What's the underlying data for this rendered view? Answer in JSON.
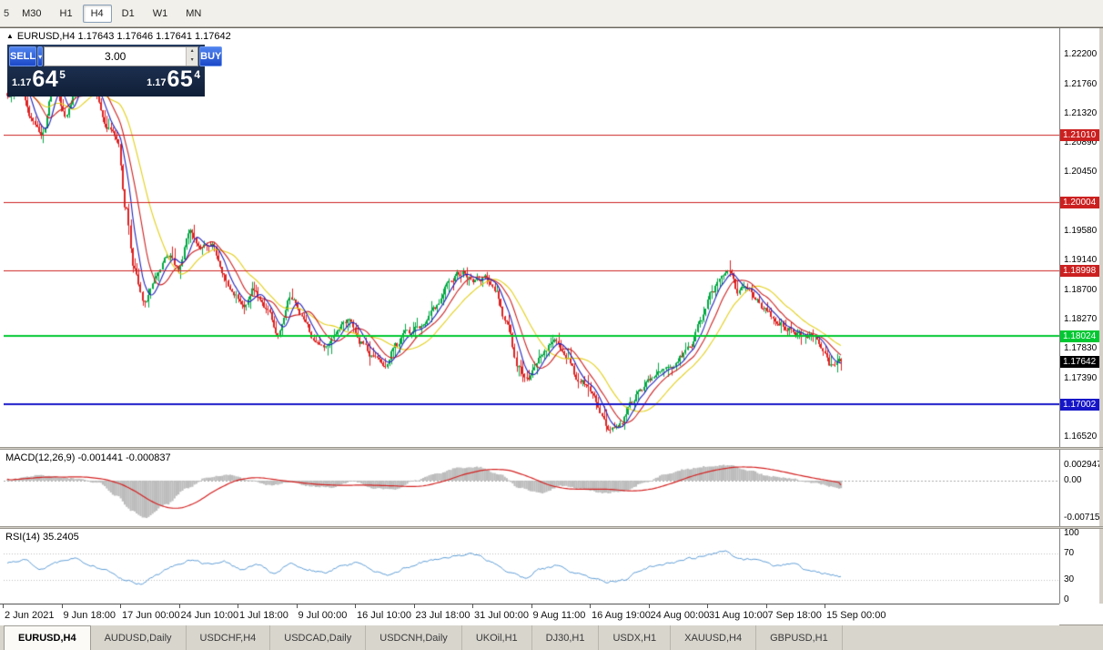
{
  "toolbar": {
    "partial_label": "5",
    "timeframes": [
      "M30",
      "H1",
      "H4",
      "D1",
      "W1",
      "MN"
    ],
    "active_timeframe": "H4"
  },
  "chart_header": {
    "toggle_arrow": "▲",
    "title": "EURUSD,H4 1.17643 1.17646 1.17641 1.17642"
  },
  "trade_panel": {
    "sell_label": "SELL",
    "buy_label": "BUY",
    "dropdown_arrow": "▾",
    "volume": "3.00",
    "spin_up": "▴",
    "spin_down": "▾",
    "sell_price": {
      "prefix": "1.17",
      "big": "64",
      "sup": "5"
    },
    "buy_price": {
      "prefix": "1.17",
      "big": "65",
      "sup": "4"
    }
  },
  "price_axis_labels": [
    "1.22200",
    "1.21760",
    "1.21320",
    "1.20890",
    "1.20450",
    "1.20010",
    "1.19580",
    "1.19140",
    "1.18700",
    "1.18270",
    "1.17830",
    "1.17390",
    "1.16960",
    "1.16520"
  ],
  "current_price_badge": "1.17642",
  "macd_panel": {
    "label": "MACD(12,26,9) -0.001441 -0.000837",
    "axis_labels": [
      "0.002947",
      "0.00",
      "-0.007151"
    ]
  },
  "rsi_panel": {
    "label": "RSI(14) 35.2405",
    "axis_labels": [
      "100",
      "70",
      "30",
      "0"
    ]
  },
  "time_axis_labels": [
    "2 Jun 2021",
    "9 Jun 18:00",
    "17 Jun 00:00",
    "24 Jun 10:00",
    "1 Jul 18:00",
    "9 Jul 00:00",
    "16 Jul 10:00",
    "23 Jul 18:00",
    "31 Jul 00:00",
    "9 Aug 11:00",
    "16 Aug 19:00",
    "24 Aug 00:00",
    "31 Aug 10:00",
    "7 Sep 18:00",
    "15 Sep 00:00"
  ],
  "tabs": [
    {
      "label": "EURUSD,H4",
      "active": true
    },
    {
      "label": "AUDUSD,Daily",
      "active": false
    },
    {
      "label": "USDCHF,H4",
      "active": false
    },
    {
      "label": "USDCAD,Daily",
      "active": false
    },
    {
      "label": "USDCNH,Daily",
      "active": false
    },
    {
      "label": "UKOil,H1",
      "active": false
    },
    {
      "label": "DJ30,H1",
      "active": false
    },
    {
      "label": "USDX,H1",
      "active": false
    },
    {
      "label": "XAUUSD,H4",
      "active": false
    },
    {
      "label": "GBPUSD,H1",
      "active": false
    }
  ],
  "chart_data": {
    "type": "candlestick",
    "symbol": "EURUSD",
    "timeframe": "H4",
    "ohlc_current": {
      "open": 1.17643,
      "high": 1.17646,
      "low": 1.17641,
      "close": 1.17642
    },
    "bars": 420,
    "price_scale": {
      "top": 1.22376,
      "bottom": 1.16371
    },
    "current_price": 1.17642,
    "hlines": [
      {
        "label": "1.21010",
        "value": 1.2101,
        "color": "#cc2020",
        "width": 1
      },
      {
        "label": "1.20004",
        "value": 1.20004,
        "color": "#cc2020",
        "width": 1
      },
      {
        "label": "1.18998",
        "value": 1.18998,
        "color": "#cc2020",
        "width": 1
      },
      {
        "label": "1.18024",
        "value": 1.18024,
        "color": "#00c832",
        "width": 2
      },
      {
        "label": "1.17002",
        "value": 1.17002,
        "color": "#1616c8",
        "width": 2
      }
    ],
    "moving_averages": [
      {
        "period": 7,
        "color": "#2020bb"
      },
      {
        "period": 14,
        "color": "#cc2020"
      },
      {
        "period": 26,
        "color": "#e3cf18"
      }
    ],
    "colors": {
      "up": "#00a843",
      "down": "#dd2222",
      "macd_hist": "#bcbcbc",
      "macd_signal": "#d42020",
      "rsi_line": "#5b9bd5",
      "grid_dash": "#bdbdbd"
    },
    "price_anchors": [
      [
        0.0,
        1.2155
      ],
      [
        0.012,
        1.2185
      ],
      [
        0.03,
        1.2125
      ],
      [
        0.042,
        1.21
      ],
      [
        0.055,
        1.218
      ],
      [
        0.07,
        1.213
      ],
      [
        0.09,
        1.2195
      ],
      [
        0.105,
        1.2165
      ],
      [
        0.12,
        1.211
      ],
      [
        0.132,
        1.2095
      ],
      [
        0.142,
        1.1995
      ],
      [
        0.152,
        1.19
      ],
      [
        0.165,
        1.1852
      ],
      [
        0.178,
        1.189
      ],
      [
        0.192,
        1.1925
      ],
      [
        0.205,
        1.19
      ],
      [
        0.218,
        1.1958
      ],
      [
        0.232,
        1.193
      ],
      [
        0.245,
        1.194
      ],
      [
        0.258,
        1.1898
      ],
      [
        0.272,
        1.1862
      ],
      [
        0.284,
        1.185
      ],
      [
        0.296,
        1.1872
      ],
      [
        0.31,
        1.1845
      ],
      [
        0.325,
        1.1808
      ],
      [
        0.34,
        1.1858
      ],
      [
        0.354,
        1.1832
      ],
      [
        0.368,
        1.1798
      ],
      [
        0.382,
        1.1788
      ],
      [
        0.396,
        1.1812
      ],
      [
        0.41,
        1.1828
      ],
      [
        0.425,
        1.1792
      ],
      [
        0.438,
        1.1772
      ],
      [
        0.452,
        1.1758
      ],
      [
        0.466,
        1.1788
      ],
      [
        0.48,
        1.1808
      ],
      [
        0.496,
        1.1818
      ],
      [
        0.512,
        1.1842
      ],
      [
        0.528,
        1.1878
      ],
      [
        0.545,
        1.1896
      ],
      [
        0.56,
        1.1885
      ],
      [
        0.572,
        1.1888
      ],
      [
        0.585,
        1.1868
      ],
      [
        0.598,
        1.1825
      ],
      [
        0.612,
        1.176
      ],
      [
        0.625,
        1.1735
      ],
      [
        0.64,
        1.1772
      ],
      [
        0.655,
        1.1795
      ],
      [
        0.67,
        1.1772
      ],
      [
        0.685,
        1.1738
      ],
      [
        0.7,
        1.1722
      ],
      [
        0.712,
        1.1688
      ],
      [
        0.724,
        1.1662
      ],
      [
        0.736,
        1.1672
      ],
      [
        0.748,
        1.1702
      ],
      [
        0.76,
        1.1725
      ],
      [
        0.772,
        1.174
      ],
      [
        0.784,
        1.1748
      ],
      [
        0.796,
        1.1758
      ],
      [
        0.808,
        1.1772
      ],
      [
        0.82,
        1.179
      ],
      [
        0.832,
        1.1825
      ],
      [
        0.844,
        1.1865
      ],
      [
        0.856,
        1.189
      ],
      [
        0.866,
        1.1896
      ],
      [
        0.876,
        1.187
      ],
      [
        0.888,
        1.1878
      ],
      [
        0.898,
        1.1858
      ],
      [
        0.908,
        1.1842
      ],
      [
        0.918,
        1.1832
      ],
      [
        0.928,
        1.182
      ],
      [
        0.938,
        1.1812
      ],
      [
        0.948,
        1.1806
      ],
      [
        0.958,
        1.1802
      ],
      [
        0.968,
        1.18
      ],
      [
        0.978,
        1.1785
      ],
      [
        0.988,
        1.1758
      ],
      [
        1.0,
        1.1764
      ]
    ],
    "macd_scale": {
      "top": 0.0059,
      "bottom": -0.0087
    },
    "macd_values": {
      "main": -0.001441,
      "signal": -0.000837
    },
    "macd_anchors": [
      [
        0.0,
        0.0002
      ],
      [
        0.04,
        0.001
      ],
      [
        0.08,
        0.0004
      ],
      [
        0.11,
        -0.0004
      ],
      [
        0.13,
        -0.0028
      ],
      [
        0.15,
        -0.0058
      ],
      [
        0.165,
        -0.00715
      ],
      [
        0.19,
        -0.0046
      ],
      [
        0.215,
        -0.0015
      ],
      [
        0.24,
        0.0006
      ],
      [
        0.265,
        0.0011
      ],
      [
        0.29,
        0.0002
      ],
      [
        0.315,
        -0.0009
      ],
      [
        0.34,
        -0.0003
      ],
      [
        0.365,
        -0.0011
      ],
      [
        0.39,
        -0.0013
      ],
      [
        0.415,
        -0.0001
      ],
      [
        0.44,
        -0.0015
      ],
      [
        0.465,
        -0.0017
      ],
      [
        0.49,
        0.0001
      ],
      [
        0.515,
        0.0013
      ],
      [
        0.54,
        0.0024
      ],
      [
        0.565,
        0.0026
      ],
      [
        0.59,
        0.0012
      ],
      [
        0.615,
        -0.0014
      ],
      [
        0.64,
        -0.0024
      ],
      [
        0.665,
        -0.001
      ],
      [
        0.69,
        -0.0016
      ],
      [
        0.715,
        -0.0024
      ],
      [
        0.74,
        -0.002
      ],
      [
        0.765,
        -0.0004
      ],
      [
        0.79,
        0.0012
      ],
      [
        0.815,
        0.0022
      ],
      [
        0.84,
        0.0027
      ],
      [
        0.865,
        0.00295
      ],
      [
        0.89,
        0.0019
      ],
      [
        0.915,
        0.0008
      ],
      [
        0.94,
        0.0004
      ],
      [
        0.965,
        -0.0004
      ],
      [
        1.0,
        -0.00144
      ]
    ],
    "rsi_scale": {
      "top": 107.2,
      "bottom": -5.9
    },
    "rsi_value": 35.2405,
    "rsi_levels": [
      70,
      30
    ],
    "rsi_anchors": [
      [
        0.0,
        55
      ],
      [
        0.02,
        60
      ],
      [
        0.04,
        47
      ],
      [
        0.06,
        57
      ],
      [
        0.08,
        64
      ],
      [
        0.1,
        52
      ],
      [
        0.12,
        44
      ],
      [
        0.14,
        30
      ],
      [
        0.16,
        24
      ],
      [
        0.18,
        38
      ],
      [
        0.2,
        52
      ],
      [
        0.22,
        60
      ],
      [
        0.24,
        54
      ],
      [
        0.26,
        58
      ],
      [
        0.28,
        46
      ],
      [
        0.3,
        52
      ],
      [
        0.32,
        41
      ],
      [
        0.34,
        54
      ],
      [
        0.36,
        46
      ],
      [
        0.38,
        40
      ],
      [
        0.4,
        50
      ],
      [
        0.42,
        56
      ],
      [
        0.44,
        43
      ],
      [
        0.46,
        37
      ],
      [
        0.48,
        50
      ],
      [
        0.5,
        57
      ],
      [
        0.52,
        62
      ],
      [
        0.54,
        66
      ],
      [
        0.56,
        69
      ],
      [
        0.58,
        58
      ],
      [
        0.6,
        42
      ],
      [
        0.62,
        33
      ],
      [
        0.64,
        46
      ],
      [
        0.66,
        52
      ],
      [
        0.68,
        40
      ],
      [
        0.7,
        33
      ],
      [
        0.72,
        27
      ],
      [
        0.74,
        30
      ],
      [
        0.76,
        45
      ],
      [
        0.78,
        52
      ],
      [
        0.8,
        57
      ],
      [
        0.82,
        62
      ],
      [
        0.84,
        68
      ],
      [
        0.86,
        73
      ],
      [
        0.88,
        60
      ],
      [
        0.9,
        63
      ],
      [
        0.92,
        52
      ],
      [
        0.94,
        55
      ],
      [
        0.96,
        45
      ],
      [
        0.98,
        40
      ],
      [
        1.0,
        35.2
      ]
    ]
  }
}
